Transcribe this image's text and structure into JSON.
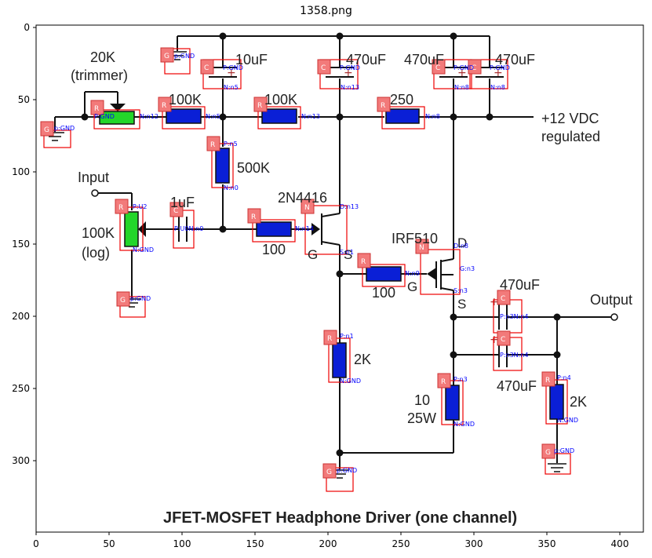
{
  "figure": {
    "title": "1358.png",
    "x_ticks": [
      "0",
      "50",
      "100",
      "150",
      "200",
      "250",
      "300",
      "350",
      "400"
    ],
    "y_ticks": [
      "0",
      "50",
      "100",
      "150",
      "200",
      "250",
      "300"
    ]
  },
  "schematic": {
    "title": "JFET-MOSFET Headphone Driver (one channel)",
    "labels": {
      "trimmer_value": "20K",
      "trimmer_kind": "(trimmer)",
      "c_10uf": "10uF",
      "c_470uf_a": "470uF",
      "c_470uf_b": "470uF",
      "c_470uf_c": "470uF",
      "r_100k_a": "100K",
      "r_100k_b": "100K",
      "r_250": "250",
      "supply_1": "+12 VDC",
      "supply_2": "regulated",
      "r_500k": "500K",
      "input": "Input",
      "c_1uf": "1uF",
      "jfet": "2N4416",
      "pot_value": "100K",
      "pot_kind": "(log)",
      "r_100_a": "100",
      "mosfet": "IRF510",
      "mosfet_d": "D",
      "mosfet_g": "G",
      "mosfet_s": "S",
      "jfet_g": "G",
      "jfet_s": "S",
      "r_100_b": "100",
      "c_470uf_out_top": "470uF",
      "output": "Output",
      "r_2k_a": "2K",
      "r_10": "10",
      "r_10_w": "25W",
      "c_470uf_out_bot": "470uF",
      "r_2k_b": "2K"
    },
    "annotations": {
      "g_top": "p:GND",
      "c1_p": "P:GND",
      "c1_n": "N:n5",
      "c2_p": "P:GND",
      "c2_n": "N:n13",
      "c3_p": "P:GND",
      "c3_n": "N:n8",
      "c4_p": "P:GND",
      "c4_n": "N:n8",
      "g_left": "p:GND",
      "trim_p": "P:GND",
      "trim_n": "N:n12",
      "r100k_n": "N:n5",
      "r100k2_n": "N:n13",
      "r250_n": "N:n8",
      "r500k_p": "P:n5",
      "r500k_n": "N:n0",
      "pot_p": "P:U2",
      "pot_n": "N:GND",
      "c1uf_pn": "P:U0N:n0",
      "r100_n": "N:n14",
      "jfet_d": "D:n13",
      "jfet_s": "S:n1",
      "jfet_g": "14",
      "mos_d": "D:n8",
      "mos_g": "G:n3",
      "mos_s": "S:n3",
      "r100b_n": "N:n9",
      "g_pot": "p:GND",
      "c5_pn": "P:n3N:n4",
      "c6_pn": "P:n3N:n4",
      "r2k_p": "P:n1",
      "r2k_n": "N:GND",
      "r10_p": "P:n3",
      "r10_n": "N:GND",
      "r2kb_p": "P:n4",
      "r2kb_n": "N:GND",
      "g_bot": "p:GND",
      "g_right": "p:GND"
    },
    "box_letters": {
      "g": "G",
      "c": "C",
      "r": "R",
      "n": "N"
    }
  }
}
